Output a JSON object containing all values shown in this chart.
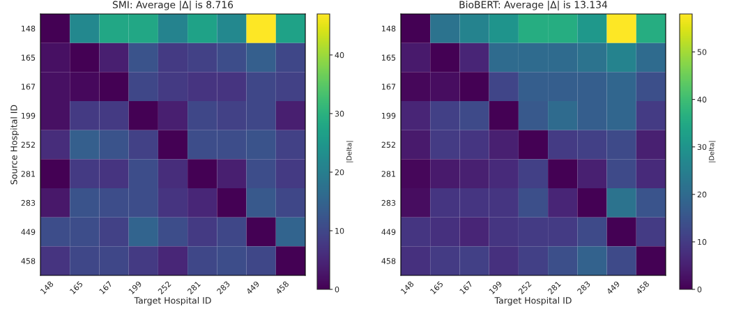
{
  "chart_data": [
    {
      "type": "heatmap",
      "title": "SMI: Average |Δ| is 8.716",
      "xlabel": "Target Hospital ID",
      "ylabel": "Source Hospital ID",
      "clabel": "|Delta|",
      "categories": [
        "148",
        "165",
        "167",
        "199",
        "252",
        "281",
        "283",
        "449",
        "458"
      ],
      "y_categories": [
        "148",
        "165",
        "167",
        "199",
        "252",
        "281",
        "283",
        "449",
        "458"
      ],
      "cells": [
        [
          0,
          22,
          28,
          28,
          21,
          27,
          22,
          47,
          27
        ],
        [
          2,
          0,
          4,
          12,
          8,
          9,
          11,
          14,
          10
        ],
        [
          2,
          1,
          0,
          10,
          8,
          7,
          7,
          10,
          9
        ],
        [
          2,
          8,
          8,
          0,
          4,
          10,
          9,
          10,
          4
        ],
        [
          6,
          14,
          12,
          9,
          0,
          11,
          11,
          12,
          9
        ],
        [
          0,
          8,
          7,
          11,
          6,
          0,
          4,
          11,
          8
        ],
        [
          3,
          12,
          11,
          11,
          7,
          5,
          0,
          13,
          10
        ],
        [
          11,
          11,
          9,
          15,
          11,
          8,
          10,
          0,
          15
        ],
        [
          7,
          10,
          10,
          8,
          5,
          10,
          11,
          10,
          0
        ]
      ],
      "clim": [
        0,
        47
      ],
      "cticks": [
        0,
        10,
        20,
        30,
        40
      ]
    },
    {
      "type": "heatmap",
      "title": "BioBERT: Average |Δ| is 13.134",
      "xlabel": "Target Hospital ID",
      "clabel": "|Delta|",
      "categories": [
        "148",
        "165",
        "167",
        "199",
        "252",
        "281",
        "283",
        "449",
        "458"
      ],
      "y_categories": [
        "148",
        "165",
        "167",
        "199",
        "252",
        "281",
        "283",
        "449",
        "458"
      ],
      "cells": [
        [
          0,
          22,
          26,
          30,
          36,
          36,
          31,
          58,
          36
        ],
        [
          4,
          0,
          6,
          20,
          20,
          20,
          22,
          26,
          20
        ],
        [
          1,
          2,
          0,
          12,
          17,
          17,
          17,
          19,
          14
        ],
        [
          6,
          11,
          13,
          0,
          16,
          20,
          17,
          19,
          10
        ],
        [
          4,
          10,
          9,
          5,
          0,
          10,
          11,
          13,
          5
        ],
        [
          1,
          4,
          5,
          7,
          11,
          0,
          5,
          13,
          7
        ],
        [
          2,
          9,
          9,
          9,
          14,
          6,
          0,
          22,
          15
        ],
        [
          9,
          8,
          6,
          9,
          10,
          10,
          13,
          0,
          10
        ],
        [
          8,
          10,
          11,
          8,
          11,
          14,
          18,
          13,
          0
        ]
      ],
      "clim": [
        0,
        58
      ],
      "cticks": [
        0,
        10,
        20,
        30,
        40,
        50
      ]
    }
  ]
}
